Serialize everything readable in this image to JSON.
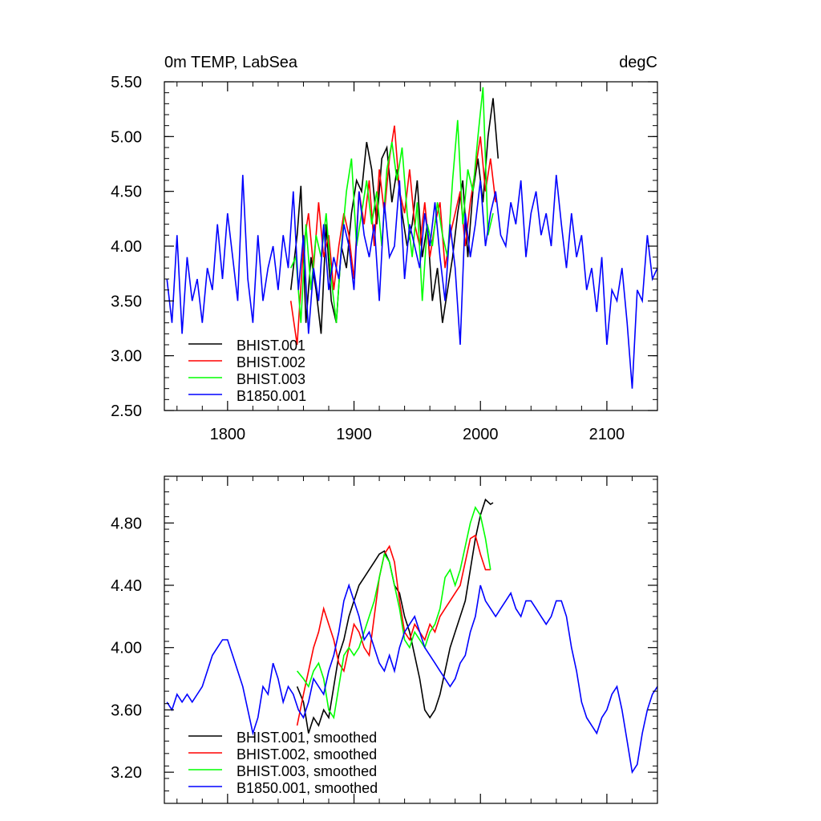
{
  "chart_data": [
    {
      "type": "line",
      "title_left": "0m TEMP, LabSea",
      "title_right": "degC",
      "xlabel": "",
      "ylabel": "",
      "xlim": [
        1750,
        2140
      ],
      "ylim": [
        2.5,
        5.5
      ],
      "x_ticks": [
        1800,
        1900,
        2000,
        2100
      ],
      "x_tick_labels": [
        "1800",
        "1900",
        "2000",
        "2100"
      ],
      "y_ticks": [
        2.5,
        3.0,
        3.5,
        4.0,
        4.5,
        5.0,
        5.5
      ],
      "y_tick_labels": [
        "2.50",
        "3.00",
        "3.50",
        "4.00",
        "4.50",
        "5.00",
        "5.50"
      ],
      "legend_position": "bottom-left",
      "series": [
        {
          "name": "BHIST.001",
          "color": "#000000",
          "x": [
            1850,
            1855,
            1858,
            1862,
            1866,
            1870,
            1874,
            1878,
            1882,
            1886,
            1890,
            1894,
            1898,
            1902,
            1906,
            1910,
            1914,
            1918,
            1922,
            1926,
            1930,
            1934,
            1938,
            1942,
            1946,
            1950,
            1954,
            1958,
            1962,
            1966,
            1970,
            1974,
            1978,
            1982,
            1986,
            1990,
            1994,
            1998,
            2002,
            2006,
            2010,
            2014
          ],
          "values": [
            3.6,
            4.1,
            4.55,
            3.3,
            3.9,
            3.6,
            3.2,
            4.2,
            3.5,
            3.3,
            4.0,
            3.8,
            4.3,
            4.6,
            4.5,
            4.95,
            4.7,
            4.2,
            4.8,
            4.9,
            4.4,
            4.7,
            4.3,
            4.0,
            4.2,
            4.6,
            3.9,
            4.2,
            3.5,
            3.8,
            3.3,
            3.6,
            3.9,
            4.3,
            4.6,
            3.9,
            4.5,
            4.8,
            4.4,
            5.0,
            5.35,
            4.8
          ]
        },
        {
          "name": "BHIST.002",
          "color": "#ff0000",
          "x": [
            1850,
            1855,
            1860,
            1864,
            1868,
            1872,
            1876,
            1880,
            1884,
            1888,
            1892,
            1896,
            1900,
            1904,
            1908,
            1912,
            1916,
            1920,
            1924,
            1928,
            1932,
            1936,
            1940,
            1944,
            1948,
            1952,
            1956,
            1960,
            1964,
            1968,
            1972,
            1976,
            1980,
            1984,
            1988,
            1992,
            1996,
            2000,
            2004,
            2008,
            2012
          ],
          "values": [
            3.5,
            3.1,
            4.0,
            4.3,
            3.8,
            4.4,
            3.9,
            4.1,
            3.6,
            4.0,
            4.3,
            4.1,
            3.7,
            4.5,
            4.2,
            4.6,
            4.0,
            4.7,
            4.3,
            4.8,
            5.1,
            4.5,
            4.3,
            4.7,
            4.2,
            4.0,
            4.4,
            3.9,
            4.2,
            4.4,
            3.8,
            4.1,
            4.3,
            4.5,
            4.0,
            4.4,
            4.7,
            5.0,
            4.5,
            4.8,
            4.4
          ]
        },
        {
          "name": "BHIST.003",
          "color": "#00ff00",
          "x": [
            1850,
            1854,
            1858,
            1862,
            1866,
            1870,
            1874,
            1878,
            1882,
            1886,
            1890,
            1894,
            1898,
            1902,
            1906,
            1910,
            1914,
            1918,
            1922,
            1926,
            1930,
            1934,
            1938,
            1942,
            1946,
            1950,
            1954,
            1958,
            1962,
            1966,
            1970,
            1974,
            1978,
            1982,
            1986,
            1990,
            1994,
            1998,
            2002,
            2006,
            2010
          ],
          "values": [
            3.8,
            3.9,
            3.3,
            4.2,
            3.6,
            4.1,
            3.9,
            4.3,
            3.7,
            3.3,
            4.0,
            4.5,
            4.8,
            4.0,
            4.3,
            4.6,
            4.2,
            4.5,
            4.0,
            4.7,
            4.95,
            4.6,
            4.9,
            4.3,
            3.9,
            4.4,
            3.5,
            4.2,
            4.0,
            4.4,
            4.1,
            3.9,
            4.6,
            5.15,
            4.2,
            4.7,
            4.5,
            5.0,
            5.45,
            4.1,
            4.3
          ]
        },
        {
          "name": "B1850.001",
          "color": "#0000ff",
          "x": [
            1752,
            1756,
            1760,
            1764,
            1768,
            1772,
            1776,
            1780,
            1784,
            1788,
            1792,
            1796,
            1800,
            1804,
            1808,
            1812,
            1816,
            1820,
            1824,
            1828,
            1832,
            1836,
            1840,
            1844,
            1848,
            1852,
            1856,
            1860,
            1864,
            1868,
            1872,
            1876,
            1880,
            1884,
            1888,
            1892,
            1896,
            1900,
            1904,
            1908,
            1912,
            1916,
            1920,
            1924,
            1928,
            1932,
            1936,
            1940,
            1944,
            1948,
            1952,
            1956,
            1960,
            1964,
            1968,
            1972,
            1976,
            1980,
            1984,
            1988,
            1992,
            1996,
            2000,
            2004,
            2008,
            2012,
            2016,
            2020,
            2024,
            2028,
            2032,
            2036,
            2040,
            2044,
            2048,
            2052,
            2056,
            2060,
            2064,
            2068,
            2072,
            2076,
            2080,
            2084,
            2088,
            2092,
            2096,
            2100,
            2104,
            2108,
            2112,
            2116,
            2120,
            2124,
            2128,
            2132,
            2136,
            2140
          ],
          "values": [
            3.7,
            3.3,
            4.1,
            3.2,
            3.9,
            3.5,
            3.7,
            3.3,
            3.8,
            3.6,
            4.2,
            3.7,
            4.3,
            3.9,
            3.5,
            4.65,
            3.7,
            3.3,
            4.1,
            3.5,
            3.8,
            4.0,
            3.6,
            4.1,
            3.8,
            4.5,
            3.6,
            4.1,
            3.2,
            3.8,
            3.5,
            4.2,
            3.6,
            3.9,
            3.7,
            4.2,
            4.0,
            3.6,
            4.5,
            4.1,
            3.9,
            4.2,
            3.5,
            4.4,
            3.9,
            4.0,
            4.6,
            3.7,
            4.2,
            4.0,
            3.8,
            4.3,
            4.0,
            4.4,
            3.9,
            3.5,
            4.2,
            3.8,
            3.1,
            4.3,
            3.9,
            4.2,
            4.6,
            4.0,
            4.3,
            4.5,
            4.1,
            4.0,
            4.4,
            4.2,
            4.6,
            3.9,
            4.3,
            4.5,
            4.1,
            4.3,
            4.0,
            4.65,
            4.2,
            3.8,
            4.3,
            3.9,
            4.1,
            3.6,
            3.8,
            3.4,
            3.9,
            3.1,
            3.6,
            3.5,
            3.8,
            3.3,
            2.7,
            3.6,
            3.5,
            4.1,
            3.7,
            3.8
          ]
        }
      ]
    },
    {
      "type": "line",
      "title_left": "",
      "title_right": "",
      "xlabel": "",
      "ylabel": "",
      "xlim": [
        1750,
        2140
      ],
      "ylim": [
        3.0,
        5.1
      ],
      "x_ticks": [
        1800,
        1900,
        2000,
        2100
      ],
      "x_tick_labels": [],
      "y_ticks": [
        3.2,
        3.6,
        4.0,
        4.4,
        4.8
      ],
      "y_tick_labels": [
        "3.20",
        "3.60",
        "4.00",
        "4.40",
        "4.80"
      ],
      "legend_position": "bottom-left",
      "series": [
        {
          "name": "BHIST.001, smoothed",
          "color": "#000000",
          "x": [
            1855,
            1860,
            1864,
            1868,
            1872,
            1876,
            1880,
            1884,
            1888,
            1892,
            1896,
            1900,
            1904,
            1908,
            1912,
            1916,
            1920,
            1924,
            1928,
            1932,
            1936,
            1940,
            1944,
            1948,
            1952,
            1956,
            1960,
            1964,
            1968,
            1972,
            1976,
            1980,
            1984,
            1988,
            1992,
            1996,
            2000,
            2004,
            2008,
            2010
          ],
          "values": [
            3.75,
            3.65,
            3.45,
            3.55,
            3.5,
            3.6,
            3.55,
            3.75,
            3.95,
            4.05,
            4.2,
            4.3,
            4.4,
            4.45,
            4.5,
            4.55,
            4.6,
            4.62,
            4.55,
            4.4,
            4.35,
            4.2,
            4.1,
            3.95,
            3.8,
            3.6,
            3.55,
            3.6,
            3.7,
            3.85,
            4.0,
            4.1,
            4.2,
            4.3,
            4.5,
            4.7,
            4.85,
            4.95,
            4.92,
            4.93
          ]
        },
        {
          "name": "BHIST.002, smoothed",
          "color": "#ff0000",
          "x": [
            1855,
            1860,
            1864,
            1868,
            1872,
            1876,
            1880,
            1884,
            1888,
            1892,
            1896,
            1900,
            1904,
            1908,
            1912,
            1916,
            1920,
            1924,
            1928,
            1932,
            1936,
            1940,
            1944,
            1948,
            1952,
            1956,
            1960,
            1964,
            1968,
            1972,
            1976,
            1980,
            1984,
            1988,
            1992,
            1996,
            2000,
            2004,
            2008
          ],
          "values": [
            3.5,
            3.7,
            3.85,
            4.0,
            4.1,
            4.25,
            4.15,
            4.05,
            3.9,
            3.85,
            4.0,
            4.15,
            4.1,
            4.0,
            3.95,
            4.2,
            4.45,
            4.6,
            4.65,
            4.55,
            4.3,
            4.1,
            4.05,
            4.15,
            4.1,
            4.05,
            4.15,
            4.1,
            4.2,
            4.25,
            4.3,
            4.35,
            4.4,
            4.55,
            4.7,
            4.72,
            4.6,
            4.5,
            4.5
          ]
        },
        {
          "name": "BHIST.003, smoothed",
          "color": "#00ff00",
          "x": [
            1855,
            1860,
            1864,
            1868,
            1872,
            1876,
            1880,
            1884,
            1888,
            1892,
            1896,
            1900,
            1904,
            1908,
            1912,
            1916,
            1920,
            1924,
            1928,
            1932,
            1936,
            1940,
            1944,
            1948,
            1952,
            1956,
            1960,
            1964,
            1968,
            1972,
            1976,
            1980,
            1984,
            1988,
            1992,
            1996,
            2000,
            2004,
            2008
          ],
          "values": [
            3.85,
            3.8,
            3.75,
            3.85,
            3.9,
            3.8,
            3.6,
            3.55,
            3.75,
            3.95,
            4.0,
            3.95,
            4.0,
            4.1,
            4.2,
            4.3,
            4.45,
            4.6,
            4.55,
            4.4,
            4.25,
            4.05,
            4.0,
            4.1,
            4.05,
            4.0,
            4.1,
            4.15,
            4.25,
            4.45,
            4.5,
            4.4,
            4.5,
            4.65,
            4.8,
            4.9,
            4.85,
            4.7,
            4.5
          ]
        },
        {
          "name": "B1850.001, smoothed",
          "color": "#0000ff",
          "x": [
            1752,
            1756,
            1760,
            1764,
            1768,
            1772,
            1776,
            1780,
            1784,
            1788,
            1792,
            1796,
            1800,
            1804,
            1808,
            1812,
            1816,
            1820,
            1824,
            1828,
            1832,
            1836,
            1840,
            1844,
            1848,
            1852,
            1856,
            1860,
            1864,
            1868,
            1872,
            1876,
            1880,
            1884,
            1888,
            1892,
            1896,
            1900,
            1904,
            1908,
            1912,
            1916,
            1920,
            1924,
            1928,
            1932,
            1936,
            1940,
            1944,
            1948,
            1952,
            1956,
            1960,
            1964,
            1968,
            1972,
            1976,
            1980,
            1984,
            1988,
            1992,
            1996,
            2000,
            2004,
            2008,
            2012,
            2016,
            2020,
            2024,
            2028,
            2032,
            2036,
            2040,
            2044,
            2048,
            2052,
            2056,
            2060,
            2064,
            2068,
            2072,
            2076,
            2080,
            2084,
            2088,
            2092,
            2096,
            2100,
            2104,
            2108,
            2112,
            2116,
            2120,
            2124,
            2128,
            2132,
            2136,
            2140
          ],
          "values": [
            3.65,
            3.6,
            3.7,
            3.65,
            3.7,
            3.65,
            3.7,
            3.75,
            3.85,
            3.95,
            4.0,
            4.05,
            4.05,
            3.95,
            3.85,
            3.75,
            3.6,
            3.45,
            3.55,
            3.75,
            3.7,
            3.9,
            3.8,
            3.65,
            3.75,
            3.7,
            3.6,
            3.55,
            3.65,
            3.8,
            3.75,
            3.7,
            3.85,
            3.95,
            4.1,
            4.3,
            4.4,
            4.3,
            4.2,
            4.05,
            4.1,
            4.0,
            3.9,
            3.85,
            3.95,
            3.85,
            4.0,
            4.1,
            4.15,
            4.2,
            4.1,
            4.0,
            3.95,
            3.9,
            3.85,
            3.8,
            3.75,
            3.8,
            3.9,
            3.95,
            4.1,
            4.2,
            4.4,
            4.3,
            4.25,
            4.2,
            4.25,
            4.3,
            4.35,
            4.25,
            4.2,
            4.3,
            4.3,
            4.25,
            4.2,
            4.15,
            4.2,
            4.3,
            4.3,
            4.2,
            4.0,
            3.85,
            3.65,
            3.55,
            3.5,
            3.45,
            3.55,
            3.6,
            3.7,
            3.75,
            3.6,
            3.4,
            3.2,
            3.25,
            3.45,
            3.6,
            3.7,
            3.75
          ]
        }
      ]
    }
  ]
}
